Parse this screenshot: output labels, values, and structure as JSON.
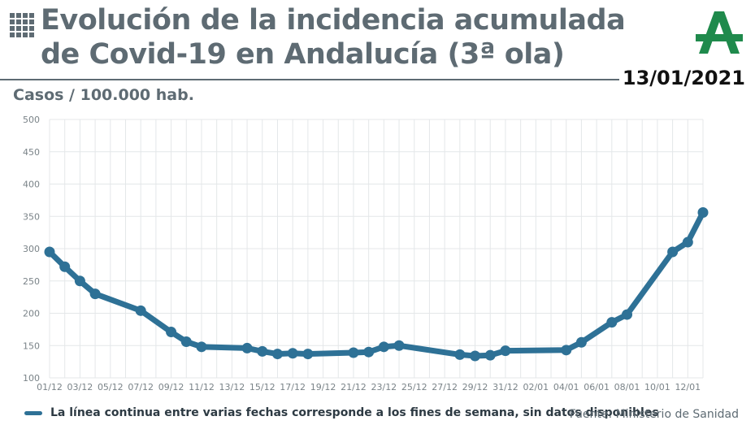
{
  "header": {
    "title_line1": "Evolución de la incidencia acumulada",
    "title_line2": "de Covid-19 en Andalucía (3ª ola)",
    "date": "13/01/2021",
    "logo_icon": "junta-andalucia-logo-icon",
    "menu_icon": "grid-icon"
  },
  "colors": {
    "line": "#2e7196",
    "grid": "#e4e7e9",
    "title": "#5e6b73",
    "logo_green": "#1f8a4c"
  },
  "chart_data": {
    "type": "line",
    "ylabel": "Casos / 100.000 hab.",
    "ylim": [
      100,
      500
    ],
    "yticks": [
      100,
      150,
      200,
      250,
      300,
      350,
      400,
      450,
      500
    ],
    "xlim": [
      "2020-12-01",
      "2021-01-13"
    ],
    "xticks": [
      "01/12",
      "03/12",
      "05/12",
      "07/12",
      "09/12",
      "11/12",
      "13/12",
      "15/12",
      "17/12",
      "19/12",
      "21/12",
      "23/12",
      "25/12",
      "27/12",
      "29/12",
      "31/12",
      "02/01",
      "04/01",
      "06/01",
      "08/01",
      "10/01",
      "12/01"
    ],
    "grid": true,
    "series": [
      {
        "points": [
          {
            "x": "2020-12-01",
            "y": 295
          },
          {
            "x": "2020-12-02",
            "y": 272
          },
          {
            "x": "2020-12-03",
            "y": 250
          },
          {
            "x": "2020-12-04",
            "y": 230
          },
          {
            "x": "2020-12-07",
            "y": 204
          },
          {
            "x": "2020-12-09",
            "y": 171
          },
          {
            "x": "2020-12-10",
            "y": 156
          },
          {
            "x": "2020-12-11",
            "y": 148
          },
          {
            "x": "2020-12-14",
            "y": 146
          },
          {
            "x": "2020-12-15",
            "y": 141
          },
          {
            "x": "2020-12-16",
            "y": 137
          },
          {
            "x": "2020-12-17",
            "y": 138
          },
          {
            "x": "2020-12-18",
            "y": 137
          },
          {
            "x": "2020-12-21",
            "y": 139
          },
          {
            "x": "2020-12-22",
            "y": 140
          },
          {
            "x": "2020-12-23",
            "y": 148
          },
          {
            "x": "2020-12-24",
            "y": 150
          },
          {
            "x": "2020-12-28",
            "y": 136
          },
          {
            "x": "2020-12-29",
            "y": 134
          },
          {
            "x": "2020-12-30",
            "y": 135
          },
          {
            "x": "2020-12-31",
            "y": 142
          },
          {
            "x": "2021-01-04",
            "y": 143
          },
          {
            "x": "2021-01-05",
            "y": 155
          },
          {
            "x": "2021-01-07",
            "y": 186
          },
          {
            "x": "2021-01-08",
            "y": 198
          },
          {
            "x": "2021-01-11",
            "y": 295
          },
          {
            "x": "2021-01-12",
            "y": 310
          },
          {
            "x": "2021-01-13",
            "y": 356
          }
        ]
      }
    ]
  },
  "legend": {
    "text": "La línea continua entre varias fechas corresponde a los fines de semana, sin datos disponibles"
  },
  "source": "Fuente: Ministerio de Sanidad"
}
